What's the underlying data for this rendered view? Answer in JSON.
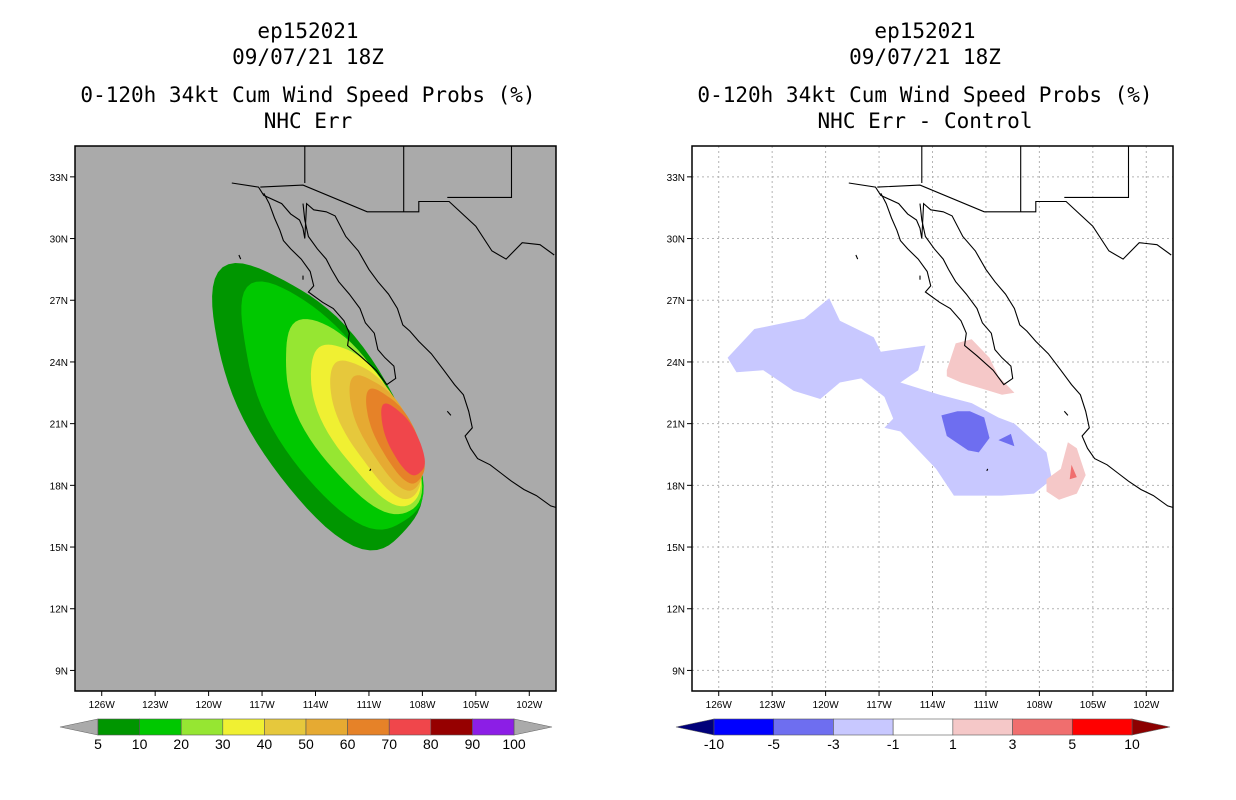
{
  "colors": {
    "ocean_left": "#aaaaaa",
    "coast": "#000000",
    "grid": "#b4b4b4"
  },
  "chart_data": [
    {
      "type": "heatmap",
      "title": [
        "ep152021",
        "09/07/21 18Z",
        "0-120h 34kt Cum Wind Speed Probs (%)",
        "NHC Err"
      ],
      "xlabel": "",
      "ylabel": "",
      "xlim": [
        -127.5,
        -100.5
      ],
      "ylim": [
        8,
        34.5
      ],
      "x_ticks": [
        -126,
        -123,
        -120,
        -117,
        -114,
        -111,
        -108,
        -105,
        -102
      ],
      "x_tick_labels": [
        "126W",
        "123W",
        "120W",
        "117W",
        "114W",
        "111W",
        "108W",
        "105W",
        "102W"
      ],
      "y_ticks": [
        9,
        12,
        15,
        18,
        21,
        24,
        27,
        30,
        33
      ],
      "y_tick_labels": [
        "9N",
        "12N",
        "15N",
        "18N",
        "21N",
        "24N",
        "27N",
        "30N",
        "33N"
      ],
      "grid": false,
      "contour_levels": [
        {
          "min": 5,
          "color": "#009600",
          "center": [
            -113.9,
            21.8
          ],
          "radii": [
            8.2,
            3.8
          ],
          "angle_deg": 52
        },
        {
          "min": 10,
          "color": "#00c800",
          "center": [
            -113.2,
            21.7
          ],
          "radii": [
            7.2,
            3.1
          ],
          "angle_deg": 52
        },
        {
          "min": 20,
          "color": "#96e632",
          "center": [
            -112.0,
            21.3
          ],
          "radii": [
            5.6,
            2.4
          ],
          "angle_deg": 54
        },
        {
          "min": 30,
          "color": "#f0f032",
          "center": [
            -111.2,
            21.0
          ],
          "radii": [
            4.6,
            1.95
          ],
          "angle_deg": 55
        },
        {
          "min": 40,
          "color": "#e6c83c",
          "center": [
            -110.6,
            20.8
          ],
          "radii": [
            3.9,
            1.6
          ],
          "angle_deg": 56
        },
        {
          "min": 50,
          "color": "#e6aa32",
          "center": [
            -110.0,
            20.6
          ],
          "radii": [
            3.2,
            1.3
          ],
          "angle_deg": 57
        },
        {
          "min": 60,
          "color": "#e68228",
          "center": [
            -109.5,
            20.4
          ],
          "radii": [
            2.6,
            1.05
          ],
          "angle_deg": 58
        },
        {
          "min": 70,
          "color": "#f0464b",
          "center": [
            -109.1,
            20.2
          ],
          "radii": [
            1.95,
            0.8
          ],
          "angle_deg": 59
        }
      ],
      "colorbar": {
        "labels": [
          "5",
          "10",
          "20",
          "30",
          "40",
          "50",
          "60",
          "70",
          "80",
          "90",
          "100"
        ],
        "colors": [
          "#009600",
          "#00c800",
          "#96e632",
          "#f0f032",
          "#e6c83c",
          "#e6aa32",
          "#e68228",
          "#f0464b",
          "#960000",
          "#8c1ee6"
        ],
        "under_color": "#aaaaaa",
        "over_color": "#aaaaaa"
      }
    },
    {
      "type": "heatmap",
      "title": [
        "ep152021",
        "09/07/21 18Z",
        "0-120h 34kt Cum Wind Speed Probs (%)",
        "NHC Err - Control"
      ],
      "xlabel": "",
      "ylabel": "",
      "xlim": [
        -127.5,
        -100.5
      ],
      "ylim": [
        8,
        34.5
      ],
      "x_ticks": [
        -126,
        -123,
        -120,
        -117,
        -114,
        -111,
        -108,
        -105,
        -102
      ],
      "x_tick_labels": [
        "126W",
        "123W",
        "120W",
        "117W",
        "114W",
        "111W",
        "108W",
        "105W",
        "102W"
      ],
      "y_ticks": [
        9,
        12,
        15,
        18,
        21,
        24,
        27,
        30,
        33
      ],
      "y_tick_labels": [
        "9N",
        "12N",
        "15N",
        "18N",
        "21N",
        "24N",
        "27N",
        "30N",
        "33N"
      ],
      "grid": true,
      "regions": [
        {
          "level": "-3 to -1",
          "color": "#c8c8ff",
          "points": [
            [
              -125.5,
              24.2
            ],
            [
              -124.0,
              25.6
            ],
            [
              -121.2,
              26.1
            ],
            [
              -119.8,
              27.1
            ],
            [
              -119.2,
              26.0
            ],
            [
              -117.3,
              25.2
            ],
            [
              -116.9,
              24.5
            ],
            [
              -114.4,
              24.8
            ],
            [
              -114.8,
              23.6
            ],
            [
              -115.8,
              23.0
            ],
            [
              -113.6,
              22.4
            ],
            [
              -111.8,
              22.0
            ],
            [
              -110.3,
              21.3
            ],
            [
              -109.4,
              21.0
            ],
            [
              -107.6,
              19.6
            ],
            [
              -107.3,
              18.3
            ],
            [
              -108.3,
              17.6
            ],
            [
              -110.1,
              17.5
            ],
            [
              -112.8,
              17.5
            ],
            [
              -113.8,
              18.8
            ],
            [
              -116.0,
              20.8
            ],
            [
              -116.7,
              22.3
            ],
            [
              -118.0,
              23.2
            ],
            [
              -119.2,
              23.0
            ],
            [
              -120.3,
              22.2
            ],
            [
              -121.8,
              22.6
            ],
            [
              -123.5,
              23.6
            ],
            [
              -125.0,
              23.5
            ]
          ]
        },
        {
          "level": "-3 to -1",
          "color": "#c8c8ff",
          "points": [
            [
              -116.7,
              20.8
            ],
            [
              -115.8,
              21.6
            ],
            [
              -115.7,
              20.6
            ]
          ]
        },
        {
          "level": "-5 to -3",
          "color": "#6e6ef0",
          "points": [
            [
              -113.5,
              21.4
            ],
            [
              -112.6,
              21.6
            ],
            [
              -111.9,
              21.6
            ],
            [
              -111.1,
              21.3
            ],
            [
              -110.8,
              20.3
            ],
            [
              -111.4,
              19.6
            ],
            [
              -112.0,
              19.7
            ],
            [
              -113.2,
              20.4
            ]
          ]
        },
        {
          "level": "-5 to -3",
          "color": "#6e6ef0",
          "points": [
            [
              -110.3,
              20.2
            ],
            [
              -109.6,
              20.5
            ],
            [
              -109.4,
              19.9
            ]
          ]
        },
        {
          "level": "1 to 3",
          "color": "#f5c8c8",
          "points": [
            [
              -113.2,
              23.6
            ],
            [
              -112.7,
              24.9
            ],
            [
              -111.8,
              25.1
            ],
            [
              -110.8,
              24.2
            ],
            [
              -110.3,
              23.3
            ],
            [
              -109.4,
              22.5
            ],
            [
              -110.1,
              22.4
            ],
            [
              -111.2,
              22.7
            ],
            [
              -112.4,
              23.0
            ],
            [
              -113.2,
              23.3
            ]
          ]
        },
        {
          "level": "1 to 3",
          "color": "#f5c8c8",
          "points": [
            [
              -107.6,
              18.3
            ],
            [
              -106.8,
              18.8
            ],
            [
              -106.4,
              20.1
            ],
            [
              -105.9,
              19.8
            ],
            [
              -105.4,
              18.5
            ],
            [
              -105.9,
              17.6
            ],
            [
              -106.9,
              17.3
            ],
            [
              -107.6,
              17.7
            ]
          ]
        },
        {
          "level": "3 to 5",
          "color": "#f06e6e",
          "points": [
            [
              -106.2,
              19.0
            ],
            [
              -105.9,
              18.4
            ],
            [
              -106.3,
              18.3
            ]
          ]
        }
      ],
      "colorbar": {
        "labels": [
          "-10",
          "-5",
          "-3",
          "-1",
          "1",
          "3",
          "5",
          "10"
        ],
        "colors": [
          "#0000c8",
          "#6e6ef0",
          "#c8c8ff",
          "#ffffff",
          "#f5c8c8",
          "#f06e6e",
          "#ff0000"
        ],
        "under_color": "#00007a",
        "over_color": "#8c0000",
        "first_color": "#0000ff"
      }
    }
  ]
}
